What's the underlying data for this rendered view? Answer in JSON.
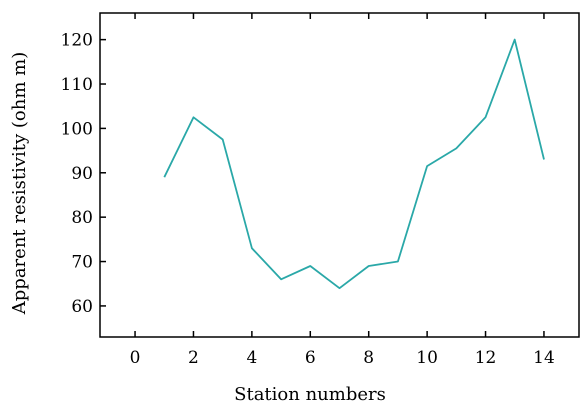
{
  "chart_data": {
    "type": "line",
    "title": "",
    "xlabel": "Station numbers",
    "ylabel": "Apparent resistivity (ohm m)",
    "xlim": [
      -1.2,
      15.2
    ],
    "ylim": [
      53,
      126
    ],
    "xticks": [
      0,
      2,
      4,
      6,
      8,
      10,
      12,
      14
    ],
    "xtick_labels": [
      "0",
      "2",
      "4",
      "6",
      "8",
      "10",
      "12",
      "14"
    ],
    "yticks": [
      60,
      70,
      80,
      90,
      100,
      110,
      120
    ],
    "ytick_labels": [
      "60",
      "70",
      "80",
      "90",
      "100",
      "110",
      "120"
    ],
    "grid": false,
    "line_color": "#2aa8a8",
    "series": [
      {
        "x": [
          1,
          2,
          3,
          4,
          5,
          6,
          7,
          8,
          9,
          10,
          11,
          12,
          13,
          14
        ],
        "values": [
          89,
          102.5,
          97.5,
          73,
          66,
          69,
          64,
          69,
          70,
          91.5,
          95.5,
          102.5,
          120,
          93
        ]
      }
    ]
  }
}
